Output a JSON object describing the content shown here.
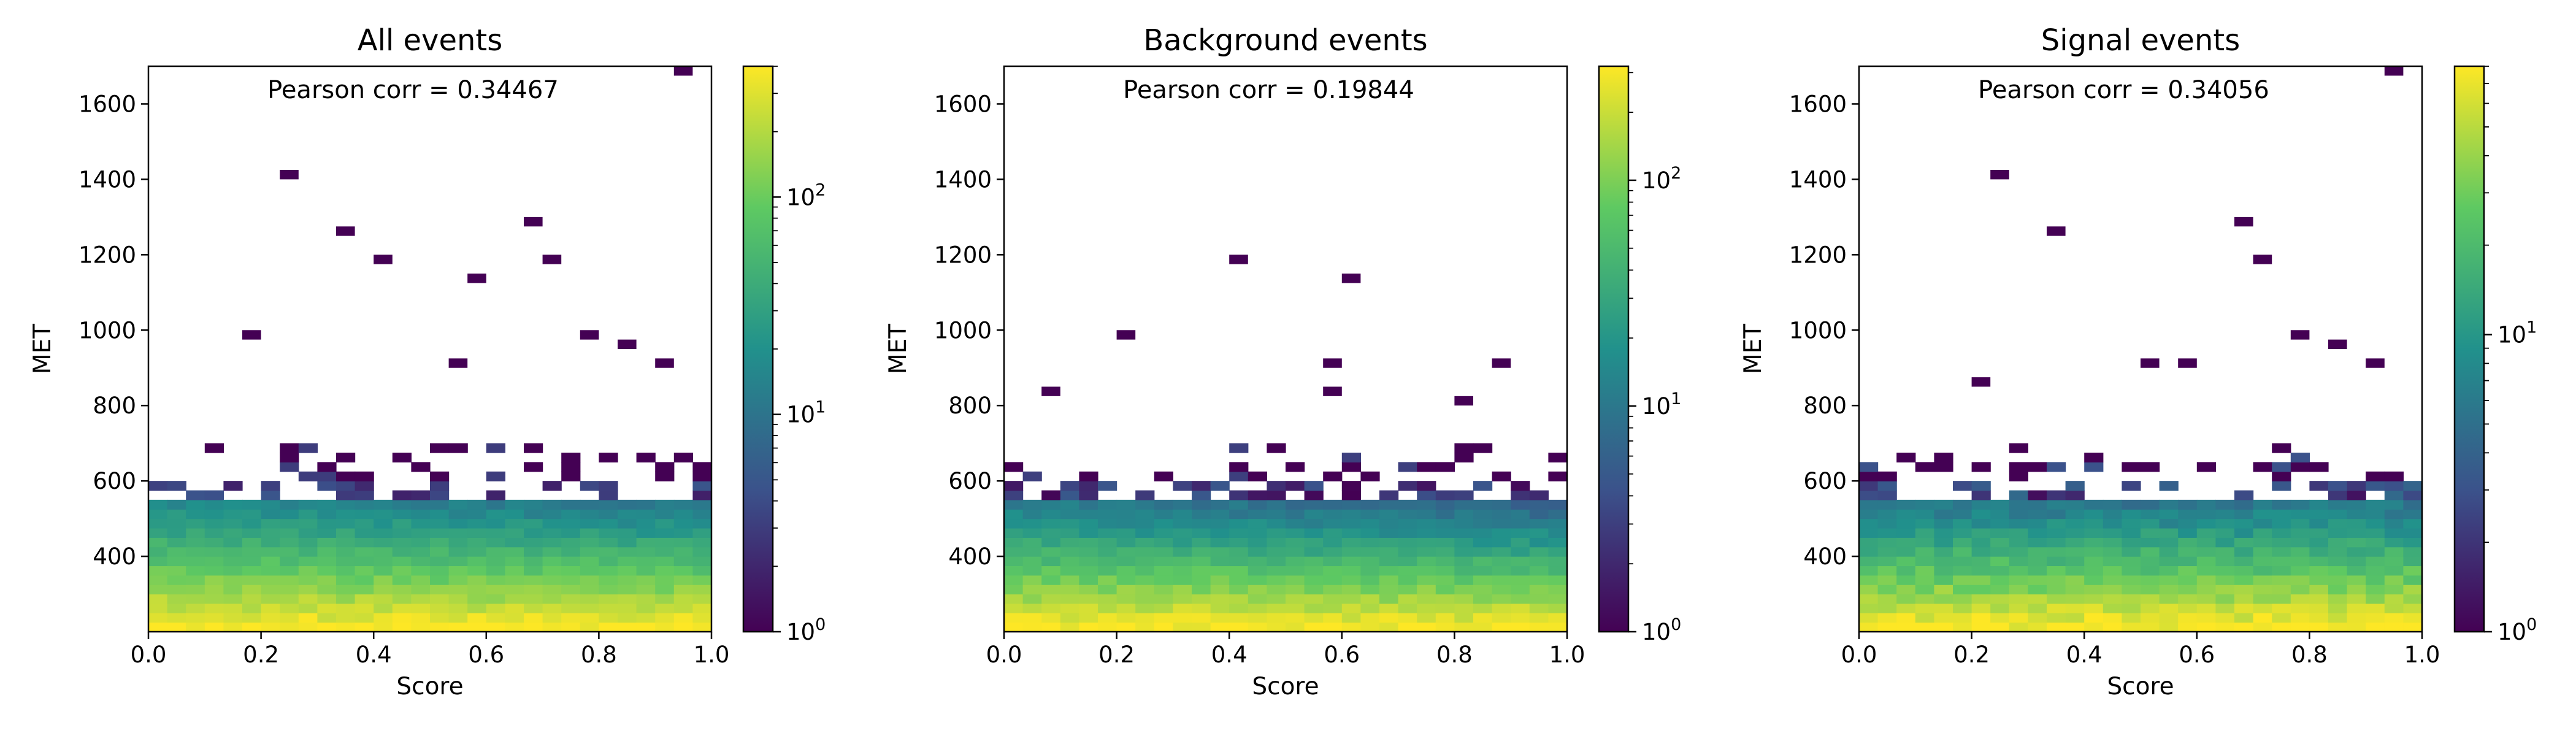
{
  "chart_data": [
    {
      "type": "heatmap",
      "title": "All events",
      "annotation": "Pearson corr = 0.34467",
      "xlabel": "Score",
      "ylabel": "MET",
      "xlim": [
        0.0,
        1.0
      ],
      "ylim": [
        200,
        1700
      ],
      "x_ticks": [
        "0.0",
        "0.2",
        "0.4",
        "0.6",
        "0.8",
        "1.0"
      ],
      "y_ticks": [
        "400",
        "600",
        "800",
        "1000",
        "1200",
        "1400",
        "1600"
      ],
      "colorbar": {
        "scale": "log",
        "min": 1,
        "max": 400,
        "tick_labels": [
          "10^0",
          "10^1",
          "10^2"
        ]
      },
      "colormap": [
        "#440154",
        "#3b528b",
        "#21918c",
        "#5ec962",
        "#fde725"
      ],
      "bins": {
        "x": 30,
        "y_width": 25
      },
      "density": {
        "peak": 400,
        "decay_per_100": 0.38,
        "score_trend": -0.35,
        "dense_edge": 540,
        "scatter_edge": 700,
        "sparse_prob": 0.45,
        "scatter_prob": 0.12
      },
      "isolated_points": [
        [
          0.25,
          1410
        ],
        [
          0.35,
          1255
        ],
        [
          0.41,
          1180
        ],
        [
          0.59,
          1140
        ],
        [
          0.68,
          1295
        ],
        [
          0.71,
          1180
        ],
        [
          0.94,
          1680
        ],
        [
          0.19,
          990
        ],
        [
          0.78,
          990
        ],
        [
          0.56,
          920
        ],
        [
          0.85,
          950
        ],
        [
          0.93,
          910
        ]
      ]
    },
    {
      "type": "heatmap",
      "title": "Background events",
      "annotation": "Pearson corr = 0.19844",
      "xlabel": "Score",
      "ylabel": "MET",
      "xlim": [
        0.0,
        1.0
      ],
      "ylim": [
        200,
        1700
      ],
      "x_ticks": [
        "0.0",
        "0.2",
        "0.4",
        "0.6",
        "0.8",
        "1.0"
      ],
      "y_ticks": [
        "400",
        "600",
        "800",
        "1000",
        "1200",
        "1400",
        "1600"
      ],
      "colorbar": {
        "scale": "log",
        "min": 1,
        "max": 320,
        "tick_labels": [
          "10^0",
          "10^1",
          "10^2"
        ]
      },
      "colormap": [
        "#440154",
        "#3b528b",
        "#21918c",
        "#5ec962",
        "#fde725"
      ],
      "bins": {
        "x": 30,
        "y_width": 25
      },
      "density": {
        "peak": 320,
        "decay_per_100": 0.36,
        "score_trend": -0.45,
        "dense_edge": 540,
        "scatter_edge": 700,
        "sparse_prob": 0.5,
        "scatter_prob": 0.1
      },
      "isolated_points": [
        [
          0.4,
          1180
        ],
        [
          0.61,
          1140
        ],
        [
          0.2,
          990
        ],
        [
          0.58,
          915
        ],
        [
          0.89,
          915
        ],
        [
          0.58,
          840
        ],
        [
          0.83,
          800
        ],
        [
          0.09,
          840
        ]
      ]
    },
    {
      "type": "heatmap",
      "title": "Signal events",
      "annotation": "Pearson corr = 0.34056",
      "xlabel": "Score",
      "ylabel": "MET",
      "xlim": [
        0.0,
        1.0
      ],
      "ylim": [
        200,
        1700
      ],
      "x_ticks": [
        "0.0",
        "0.2",
        "0.4",
        "0.6",
        "0.8",
        "1.0"
      ],
      "y_ticks": [
        "400",
        "600",
        "800",
        "1000",
        "1200",
        "1400",
        "1600"
      ],
      "colorbar": {
        "scale": "log",
        "min": 1,
        "max": 80,
        "tick_labels": [
          "10^0",
          "10^1"
        ]
      },
      "colormap": [
        "#440154",
        "#3b528b",
        "#21918c",
        "#5ec962",
        "#fde725"
      ],
      "bins": {
        "x": 30,
        "y_width": 25
      },
      "density": {
        "peak": 80,
        "decay_per_100": 0.45,
        "score_trend": 0.0,
        "dense_edge": 540,
        "scatter_edge": 700,
        "sparse_prob": 0.45,
        "scatter_prob": 0.12
      },
      "isolated_points": [
        [
          0.25,
          1410
        ],
        [
          0.35,
          1255
        ],
        [
          0.68,
          1295
        ],
        [
          0.71,
          1180
        ],
        [
          0.94,
          1680
        ],
        [
          0.78,
          990
        ],
        [
          0.22,
          870
        ],
        [
          0.53,
          910
        ],
        [
          0.58,
          910
        ],
        [
          0.85,
          950
        ],
        [
          0.93,
          910
        ]
      ]
    }
  ]
}
